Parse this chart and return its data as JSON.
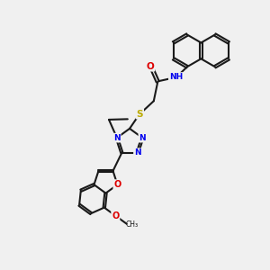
{
  "background_color": "#f0f0f0",
  "bond_color": "#1a1a1a",
  "bond_width": 1.5,
  "atom_colors": {
    "C": "#1a1a1a",
    "N": "#0000ee",
    "O": "#dd0000",
    "S": "#bbaa00",
    "H": "#4a9090"
  },
  "figsize": [
    3.0,
    3.0
  ],
  "dpi": 100
}
